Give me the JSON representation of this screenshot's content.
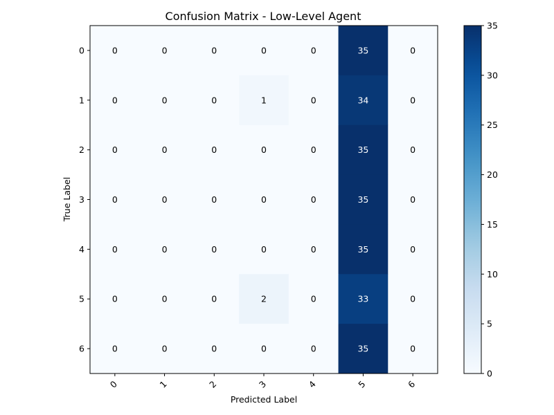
{
  "chart_data": {
    "type": "heatmap",
    "title": "Confusion Matrix - Low-Level Agent",
    "xlabel": "Predicted Label",
    "ylabel": "True Label",
    "x_categories": [
      "0",
      "1",
      "2",
      "3",
      "4",
      "5",
      "6"
    ],
    "y_categories": [
      "0",
      "1",
      "2",
      "3",
      "4",
      "5",
      "6"
    ],
    "matrix": [
      [
        0,
        0,
        0,
        0,
        0,
        35,
        0
      ],
      [
        0,
        0,
        0,
        1,
        0,
        34,
        0
      ],
      [
        0,
        0,
        0,
        0,
        0,
        35,
        0
      ],
      [
        0,
        0,
        0,
        0,
        0,
        35,
        0
      ],
      [
        0,
        0,
        0,
        0,
        0,
        35,
        0
      ],
      [
        0,
        0,
        0,
        2,
        0,
        33,
        0
      ],
      [
        0,
        0,
        0,
        0,
        0,
        35,
        0
      ]
    ],
    "colorbar": {
      "min": 0,
      "max": 35,
      "ticks": [
        "0",
        "5",
        "10",
        "15",
        "20",
        "25",
        "30",
        "35"
      ],
      "colormap": "Blues",
      "colormap_start": "#f7fbff",
      "colormap_end": "#08306b"
    },
    "x_tick_rotation": "45deg",
    "grid": false
  }
}
